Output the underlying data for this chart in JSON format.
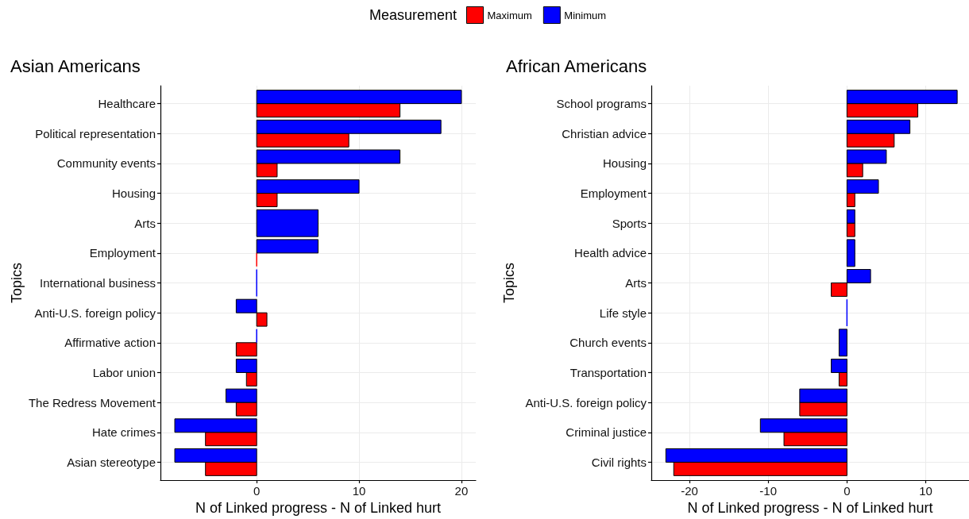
{
  "chart_data": [
    {
      "type": "bar",
      "orientation": "horizontal",
      "title": "Asian Americans",
      "xlabel": "N of Linked progress - N of Linked hurt",
      "ylabel": "Topics",
      "legend_title": "Measurement",
      "legend": "top",
      "categories": [
        "Healthcare",
        "Political representation",
        "Community events",
        "Housing",
        "Arts",
        "Employment",
        "International business",
        "Anti-U.S. foreign policy",
        "Affirmative action",
        "Labor union",
        "The Redress Movement",
        "Hate crimes",
        "Asian stereotype"
      ],
      "series": [
        {
          "name": "Maximum",
          "color": "#ff0000",
          "values": [
            14,
            9,
            2,
            2,
            null,
            0,
            null,
            1,
            -2,
            -1,
            -2,
            -5,
            -5
          ]
        },
        {
          "name": "Minimum",
          "color": "#0000ff",
          "values": [
            20,
            18,
            14,
            10,
            6,
            6,
            0,
            -2,
            0,
            -2,
            -3,
            -8,
            -8
          ]
        }
      ],
      "xlim": [
        -9.4,
        21.4
      ],
      "xticks": [
        0,
        10,
        20
      ],
      "grid": true
    },
    {
      "type": "bar",
      "orientation": "horizontal",
      "title": "African Americans",
      "xlabel": "N of Linked progress - N of Linked hurt",
      "ylabel": "Topics",
      "categories": [
        "School programs",
        "Christian advice",
        "Housing",
        "Employment",
        "Sports",
        "Health advice",
        "Arts",
        "Life style",
        "Church events",
        "Transportation",
        "Anti-U.S. foreign policy",
        "Criminal justice",
        "Civil rights"
      ],
      "series": [
        {
          "name": "Maximum",
          "color": "#ff0000",
          "values": [
            9,
            6,
            2,
            1,
            1,
            null,
            -2,
            null,
            null,
            -1,
            -6,
            -8,
            -22
          ]
        },
        {
          "name": "Minimum",
          "color": "#0000ff",
          "values": [
            14,
            8,
            5,
            4,
            1,
            1,
            3,
            0,
            -1,
            -2,
            -6,
            -11,
            -23
          ]
        }
      ],
      "xlim": [
        -24.85,
        15.5
      ],
      "xticks": [
        -20,
        -10,
        0,
        10
      ],
      "grid": true
    }
  ]
}
